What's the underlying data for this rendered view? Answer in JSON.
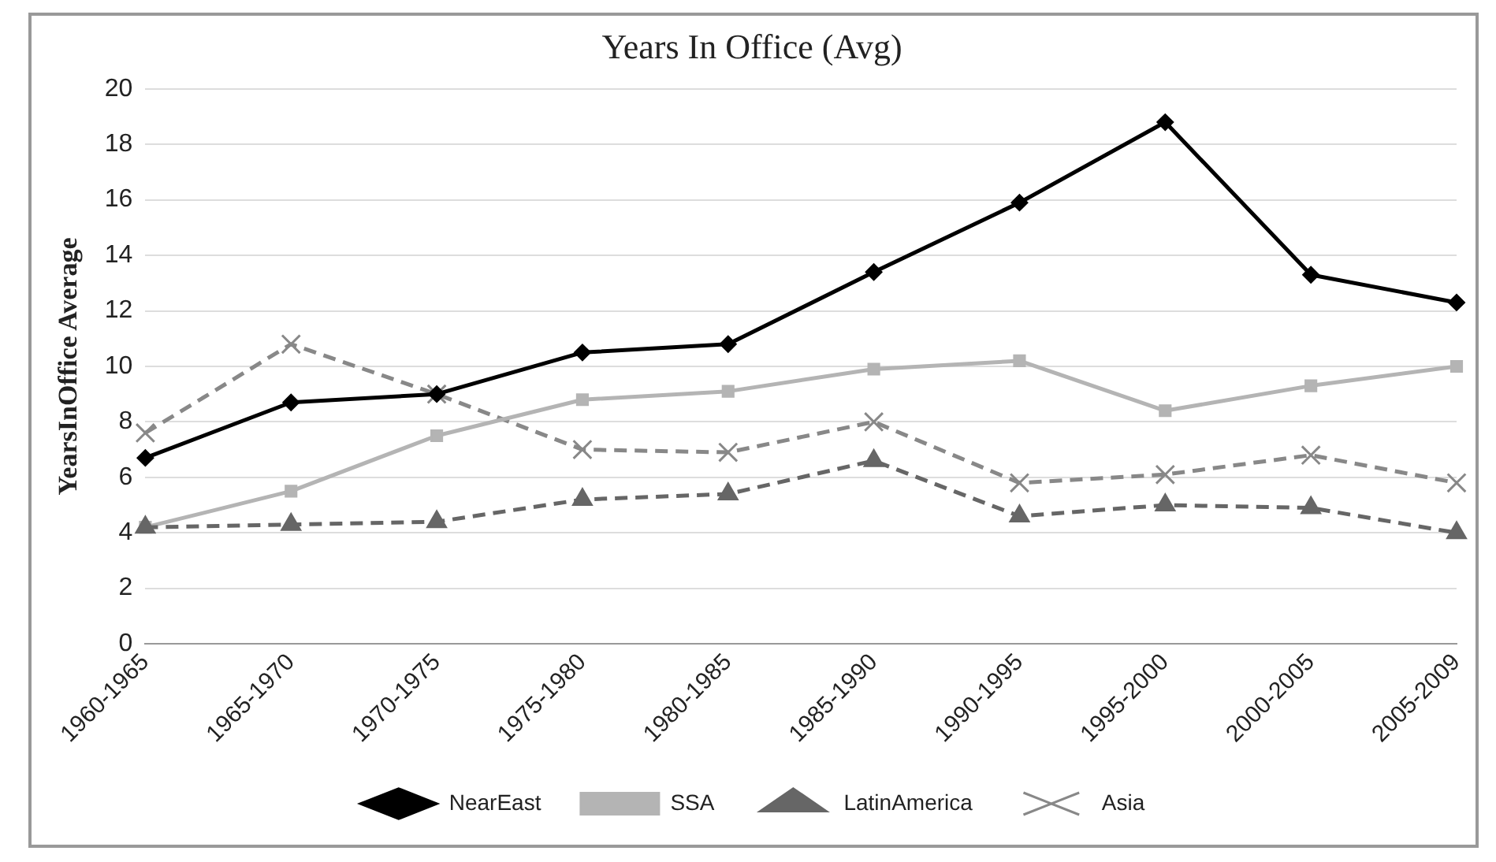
{
  "chart_data": {
    "type": "line",
    "title": "Years In Office (Avg)",
    "ylabel": "YearsInOffice Average",
    "categories": [
      "1960-1965",
      "1965-1970",
      "1970-1975",
      "1975-1980",
      "1980-1985",
      "1985-1990",
      "1990-1995",
      "1995-2000",
      "2000-2005",
      "2005-2009"
    ],
    "series": [
      {
        "name": "NearEast",
        "color": "#000000",
        "marker": "diamond",
        "line_style": "solid",
        "values": [
          6.7,
          8.7,
          9.0,
          10.5,
          10.8,
          13.4,
          15.9,
          18.8,
          13.3,
          12.3
        ]
      },
      {
        "name": "SSA",
        "color": "#b4b4b4",
        "marker": "square",
        "line_style": "solid",
        "values": [
          4.2,
          5.5,
          7.5,
          8.8,
          9.1,
          9.9,
          10.2,
          8.4,
          9.3,
          10.0
        ]
      },
      {
        "name": "LatinAmerica",
        "color": "#666666",
        "marker": "triangle",
        "line_style": "dashed",
        "values": [
          4.2,
          4.3,
          4.4,
          5.2,
          5.4,
          6.6,
          4.6,
          5.0,
          4.9,
          4.0
        ]
      },
      {
        "name": "Asia",
        "color": "#888888",
        "marker": "cross",
        "line_style": "dashed",
        "values": [
          7.6,
          10.8,
          9.0,
          7.0,
          6.9,
          8.0,
          5.8,
          6.1,
          6.8,
          5.8
        ]
      }
    ],
    "ylim": [
      0,
      20
    ],
    "yticks": [
      0,
      2,
      4,
      6,
      8,
      10,
      12,
      14,
      16,
      18,
      20
    ],
    "grid": "y",
    "legend": "bottom"
  }
}
